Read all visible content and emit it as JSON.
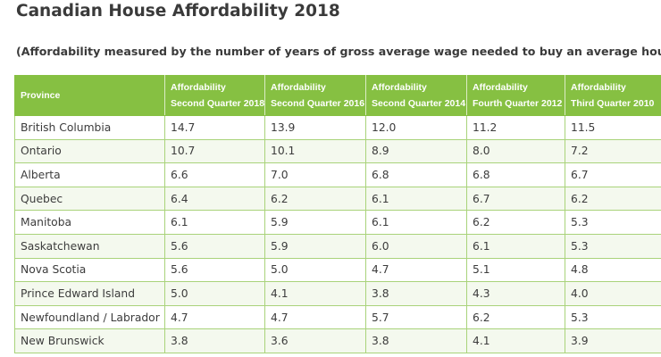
{
  "title": "Canadian House Affordability 2018",
  "subtitle": "(Affordability measured by the number of years of gross average wage needed to buy an average house.)",
  "colors": {
    "header_background": "#86c042",
    "header_text": "#ffffff",
    "border": "#a9d37a",
    "title_text": "#3a3a3a"
  },
  "table": {
    "headers": [
      {
        "line1": "Province",
        "line2": ""
      },
      {
        "line1": "Affordability",
        "line2": "Second Quarter 2018"
      },
      {
        "line1": "Affordability",
        "line2": "Second Quarter 2016"
      },
      {
        "line1": "Affordability",
        "line2": "Second Quarter 2014"
      },
      {
        "line1": "Affordability",
        "line2": "Fourth Quarter 2012"
      },
      {
        "line1": "Affordability",
        "line2": "Third Quarter 2010"
      }
    ],
    "rows": [
      [
        "British Columbia",
        "14.7",
        "13.9",
        "12.0",
        "11.2",
        "11.5"
      ],
      [
        "Ontario",
        "10.7",
        "10.1",
        "8.9",
        "8.0",
        "7.2"
      ],
      [
        "Alberta",
        "6.6",
        "7.0",
        "6.8",
        "6.8",
        "6.7"
      ],
      [
        "Quebec",
        "6.4",
        "6.2",
        "6.1",
        "6.7",
        "6.2"
      ],
      [
        "Manitoba",
        "6.1",
        "5.9",
        "6.1",
        "6.2",
        "5.3"
      ],
      [
        "Saskatchewan",
        "5.6",
        "5.9",
        "6.0",
        "6.1",
        "5.3"
      ],
      [
        "Nova Scotia",
        "5.6",
        "5.0",
        "4.7",
        "5.1",
        "4.8"
      ],
      [
        "Prince Edward Island",
        "5.0",
        "4.1",
        "3.8",
        "4.3",
        "4.0"
      ],
      [
        "Newfoundland / Labrador",
        "4.7",
        "4.7",
        "5.7",
        "6.2",
        "5.3"
      ],
      [
        "New Brunswick",
        "3.8",
        "3.6",
        "3.8",
        "4.1",
        "3.9"
      ]
    ]
  }
}
